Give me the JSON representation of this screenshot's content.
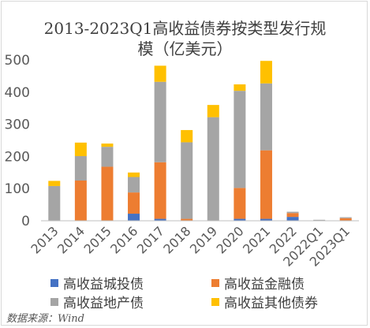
{
  "chart_data": {
    "type": "bar",
    "stacked": true,
    "title_line1": "2013-2023Q1高收益债券按类型发行规",
    "title_line2": "模（亿美元）",
    "categories": [
      "2013",
      "2014",
      "2015",
      "2016",
      "2017",
      "2018",
      "2019",
      "2020",
      "2021",
      "2022",
      "2022Q1",
      "2023Q1"
    ],
    "series": [
      {
        "name": "高收益城投债",
        "color": "#4472c4",
        "values": [
          0,
          0,
          0,
          22,
          6,
          0,
          0,
          6,
          6,
          12,
          0,
          0
        ]
      },
      {
        "name": "高收益金融债",
        "color": "#ed7d31",
        "values": [
          0,
          125,
          168,
          66,
          176,
          6,
          0,
          96,
          213,
          12,
          0,
          8
        ]
      },
      {
        "name": "高收益地产债",
        "color": "#a5a5a5",
        "values": [
          108,
          76,
          62,
          48,
          250,
          238,
          322,
          302,
          208,
          4,
          3,
          3
        ]
      },
      {
        "name": "高收益其他债券",
        "color": "#ffc000",
        "values": [
          16,
          42,
          10,
          14,
          50,
          38,
          38,
          20,
          70,
          0,
          0,
          0
        ]
      }
    ],
    "ylim": [
      0,
      500
    ],
    "yticks": [
      "0",
      "100",
      "200",
      "300",
      "400",
      "500"
    ],
    "grid": false,
    "legend_position": "bottom"
  },
  "source": "数据来源：Wind"
}
